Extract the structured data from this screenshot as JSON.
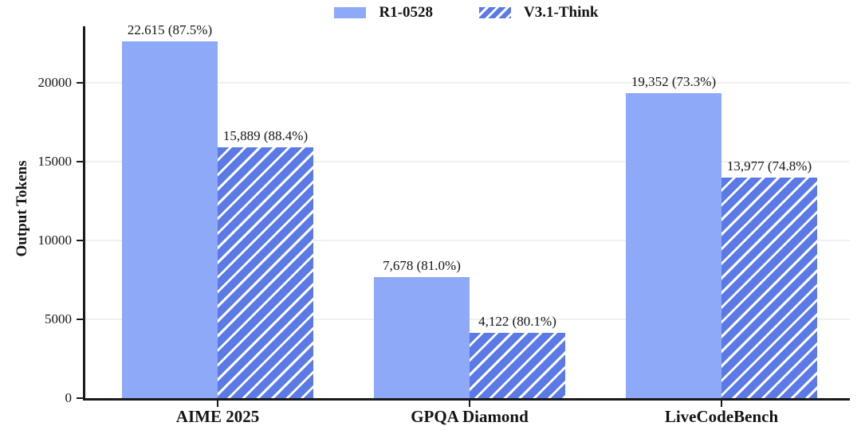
{
  "colors": {
    "background": "#ffffff",
    "axis": "#1a1a1a",
    "gridline": "#f0eff1",
    "text": "#141414",
    "series_solid": "#8DA9F8",
    "series_hatched_base": "#5B7AE8",
    "hatch_stripe": "#ffffff"
  },
  "chart_data": {
    "type": "bar",
    "title": "",
    "xlabel": "",
    "ylabel": "Output Tokens",
    "categories": [
      "AIME 2025",
      "GPQA Diamond",
      "LiveCodeBench"
    ],
    "series": [
      {
        "name": "R1-0528",
        "style": "solid",
        "color": "#8DA9F8",
        "values": [
          22615,
          7678,
          19352
        ],
        "bar_labels": [
          "22.615 (87.5%)",
          "7,678 (81.0%)",
          "19,352 (73.3%)"
        ]
      },
      {
        "name": "V3.1-Think",
        "style": "hatched",
        "color": "#5B7AE8",
        "values": [
          15889,
          4122,
          13977
        ],
        "bar_labels": [
          "15,889 (88.4%)",
          "4,122 (80.1%)",
          "13,977 (74.8%)"
        ]
      }
    ],
    "yticks": [
      0,
      5000,
      10000,
      15000,
      20000
    ],
    "ylim": [
      0,
      23600
    ],
    "grid": true,
    "legend_position": "top-center"
  }
}
